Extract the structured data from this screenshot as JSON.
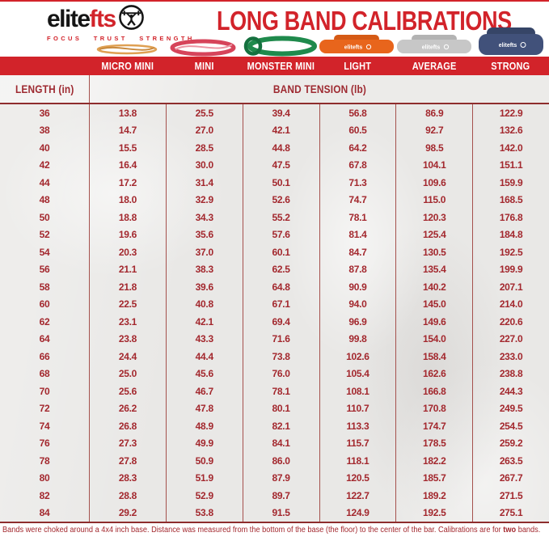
{
  "brand": {
    "word_black": "elite",
    "word_red": "fts",
    "tagline": "FOCUS TRUST STRENGTH",
    "icon": "weightlifter-circle-icon"
  },
  "header": {
    "title": "LONG BAND CALIBRATIONS"
  },
  "colors": {
    "accent_red": "#D2232A",
    "dark_red_text": "#A3282E",
    "grid_line": "#A5514D",
    "heavy_rule": "#8E2D2D",
    "table_bg": "#E9E8E6"
  },
  "bands": [
    {
      "name": "Micro Mini",
      "style": "thin-loop",
      "color": "#DFA053",
      "color2": "#C98A3E",
      "label": ""
    },
    {
      "name": "Mini",
      "style": "loop",
      "color": "#D6445A",
      "color2": "#EC96A4",
      "label": ""
    },
    {
      "name": "Monster Mini",
      "style": "loop-large",
      "color": "#1F8A4C",
      "color2": "#15713F",
      "label": ""
    },
    {
      "name": "Light",
      "style": "flat",
      "color": "#E8651C",
      "color2": "#D55A15",
      "label": "elitefts"
    },
    {
      "name": "Average",
      "style": "flat",
      "color": "#C7C7C7",
      "color2": "#B3B3B3",
      "label": "elitefts"
    },
    {
      "name": "Strong",
      "style": "flat-tall",
      "color": "#41517A",
      "color2": "#364567",
      "label": "elitefts"
    }
  ],
  "chart_data": {
    "type": "table",
    "title": "LONG BAND CALIBRATIONS",
    "row_header": "LENGTH (in)",
    "section_header": "BAND TENSION (lb)",
    "columns": [
      "MICRO MINI",
      "MINI",
      "MONSTER MINI",
      "LIGHT",
      "AVERAGE",
      "STRONG"
    ],
    "rows": [
      [
        "36",
        "13.8",
        "25.5",
        "39.4",
        "56.8",
        "86.9",
        "122.9"
      ],
      [
        "38",
        "14.7",
        "27.0",
        "42.1",
        "60.5",
        "92.7",
        "132.6"
      ],
      [
        "40",
        "15.5",
        "28.5",
        "44.8",
        "64.2",
        "98.5",
        "142.0"
      ],
      [
        "42",
        "16.4",
        "30.0",
        "47.5",
        "67.8",
        "104.1",
        "151.1"
      ],
      [
        "44",
        "17.2",
        "31.4",
        "50.1",
        "71.3",
        "109.6",
        "159.9"
      ],
      [
        "48",
        "18.0",
        "32.9",
        "52.6",
        "74.7",
        "115.0",
        "168.5"
      ],
      [
        "50",
        "18.8",
        "34.3",
        "55.2",
        "78.1",
        "120.3",
        "176.8"
      ],
      [
        "52",
        "19.6",
        "35.6",
        "57.6",
        "81.4",
        "125.4",
        "184.8"
      ],
      [
        "54",
        "20.3",
        "37.0",
        "60.1",
        "84.7",
        "130.5",
        "192.5"
      ],
      [
        "56",
        "21.1",
        "38.3",
        "62.5",
        "87.8",
        "135.4",
        "199.9"
      ],
      [
        "58",
        "21.8",
        "39.6",
        "64.8",
        "90.9",
        "140.2",
        "207.1"
      ],
      [
        "60",
        "22.5",
        "40.8",
        "67.1",
        "94.0",
        "145.0",
        "214.0"
      ],
      [
        "62",
        "23.1",
        "42.1",
        "69.4",
        "96.9",
        "149.6",
        "220.6"
      ],
      [
        "64",
        "23.8",
        "43.3",
        "71.6",
        "99.8",
        "154.0",
        "227.0"
      ],
      [
        "66",
        "24.4",
        "44.4",
        "73.8",
        "102.6",
        "158.4",
        "233.0"
      ],
      [
        "68",
        "25.0",
        "45.6",
        "76.0",
        "105.4",
        "162.6",
        "238.8"
      ],
      [
        "70",
        "25.6",
        "46.7",
        "78.1",
        "108.1",
        "166.8",
        "244.3"
      ],
      [
        "72",
        "26.2",
        "47.8",
        "80.1",
        "110.7",
        "170.8",
        "249.5"
      ],
      [
        "74",
        "26.8",
        "48.9",
        "82.1",
        "113.3",
        "174.7",
        "254.5"
      ],
      [
        "76",
        "27.3",
        "49.9",
        "84.1",
        "115.7",
        "178.5",
        "259.2"
      ],
      [
        "78",
        "27.8",
        "50.9",
        "86.0",
        "118.1",
        "182.2",
        "263.5"
      ],
      [
        "80",
        "28.3",
        "51.9",
        "87.9",
        "120.5",
        "185.7",
        "267.7"
      ],
      [
        "82",
        "28.8",
        "52.9",
        "89.7",
        "122.7",
        "189.2",
        "271.5"
      ],
      [
        "84",
        "29.2",
        "53.8",
        "91.5",
        "124.9",
        "192.5",
        "275.1"
      ]
    ]
  },
  "footer": {
    "text_before": "Bands were choked around a 4x4 inch base. Distance was measured from the bottom of the base (the floor) to the center of the bar. Calibrations are for ",
    "bold": "two",
    "text_after": " bands."
  }
}
